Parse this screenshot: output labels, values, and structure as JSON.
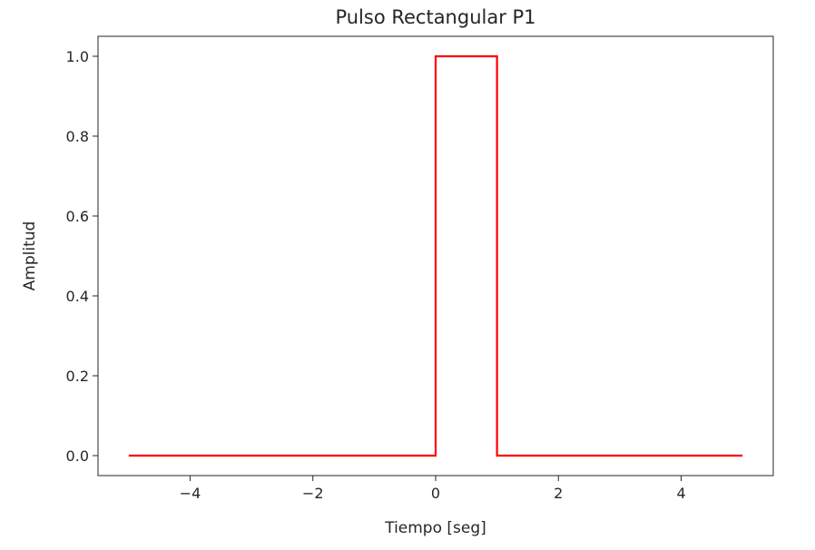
{
  "chart_data": {
    "type": "line",
    "title": "Pulso Rectangular P1",
    "xlabel": "Tiempo [seg]",
    "ylabel": "Amplitud",
    "xlim": [
      -5.5,
      5.5
    ],
    "ylim": [
      -0.05,
      1.05
    ],
    "grid": false,
    "x_ticks": [
      -4,
      -2,
      0,
      2,
      4
    ],
    "x_tick_labels": [
      "−4",
      "−2",
      "0",
      "2",
      "4"
    ],
    "y_ticks": [
      0.0,
      0.2,
      0.4,
      0.6,
      0.8,
      1.0
    ],
    "y_tick_labels": [
      "0.0",
      "0.2",
      "0.4",
      "0.6",
      "0.8",
      "1.0"
    ],
    "series": [
      {
        "color": "#ff0000",
        "x": [
          -5,
          0,
          0,
          1,
          1,
          5
        ],
        "y": [
          0,
          0,
          1,
          1,
          0,
          0
        ]
      }
    ]
  }
}
